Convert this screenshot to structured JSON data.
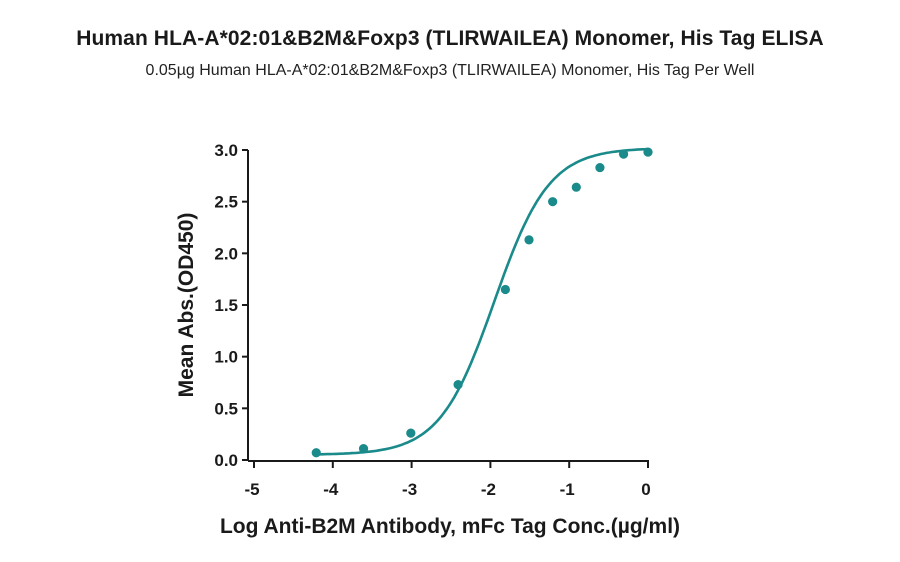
{
  "chart_data": {
    "type": "scatter",
    "title": "Human HLA-A*02:01&B2M&Foxp3 (TLIRWAILEA) Monomer, His Tag ELISA",
    "subtitle": "0.05µg Human HLA-A*02:01&B2M&Foxp3 (TLIRWAILEA) Monomer, His Tag Per Well",
    "xlabel": "Log Anti-B2M Antibody, mFc Tag Conc.(µg/ml)",
    "ylabel": "Mean Abs.(OD450)",
    "xlim": [
      -5,
      0
    ],
    "ylim": [
      0,
      3.0
    ],
    "xticks": [
      "-5",
      "-4",
      "-3",
      "-2",
      "-1",
      "0"
    ],
    "yticks": [
      "0.0",
      "0.5",
      "1.0",
      "1.5",
      "2.0",
      "2.5",
      "3.0"
    ],
    "grid": false,
    "color": "#1a8a8a",
    "series": [
      {
        "x": [
          -4.21,
          -3.61,
          -3.01,
          -2.41,
          -1.81,
          -1.51,
          -1.21,
          -0.91,
          -0.61,
          -0.31,
          0.0
        ],
        "y": [
          0.07,
          0.11,
          0.26,
          0.73,
          1.65,
          2.13,
          2.5,
          2.64,
          2.83,
          2.96,
          2.98
        ]
      }
    ],
    "fit": {
      "model": "4PL",
      "bottom": 0.05,
      "top": 3.02,
      "log_ec50": -1.95,
      "hill": 1.25
    }
  }
}
